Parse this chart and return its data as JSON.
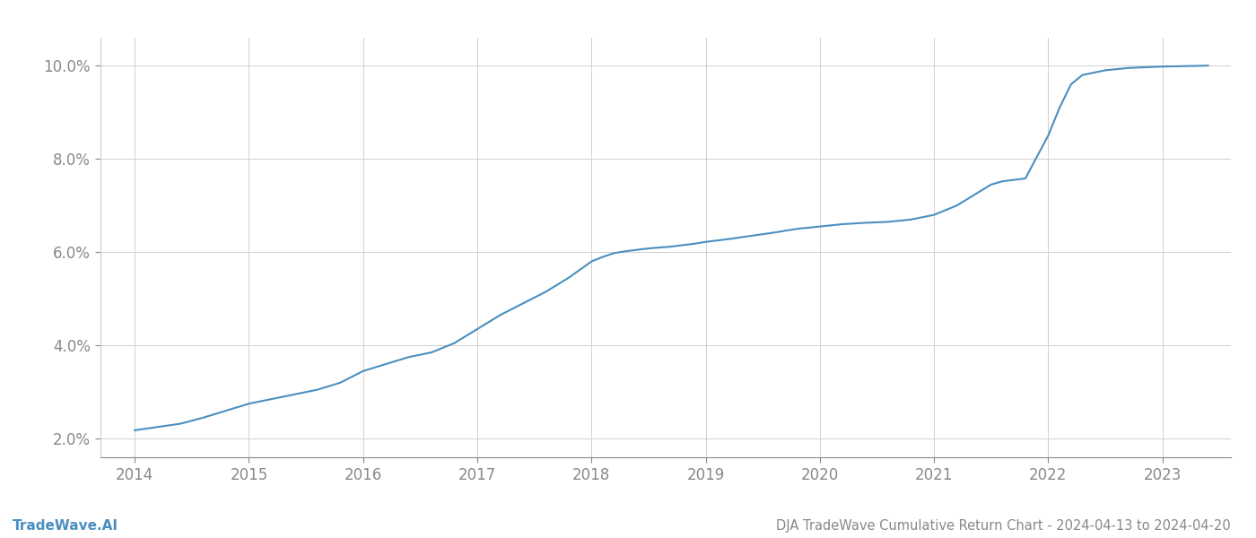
{
  "x_years": [
    2014.0,
    2014.2,
    2014.4,
    2014.6,
    2014.8,
    2015.0,
    2015.2,
    2015.4,
    2015.6,
    2015.8,
    2016.0,
    2016.2,
    2016.4,
    2016.6,
    2016.8,
    2017.0,
    2017.2,
    2017.4,
    2017.6,
    2017.8,
    2018.0,
    2018.1,
    2018.2,
    2018.3,
    2018.4,
    2018.5,
    2018.6,
    2018.7,
    2018.8,
    2018.9,
    2019.0,
    2019.2,
    2019.4,
    2019.6,
    2019.8,
    2020.0,
    2020.2,
    2020.4,
    2020.6,
    2020.8,
    2021.0,
    2021.2,
    2021.4,
    2021.5,
    2021.6,
    2021.7,
    2021.8,
    2022.0,
    2022.1,
    2022.2,
    2022.3,
    2022.5,
    2022.7,
    2022.9,
    2023.0,
    2023.2,
    2023.4
  ],
  "y_values": [
    2.18,
    2.25,
    2.32,
    2.45,
    2.6,
    2.75,
    2.85,
    2.95,
    3.05,
    3.2,
    3.45,
    3.6,
    3.75,
    3.85,
    4.05,
    4.35,
    4.65,
    4.9,
    5.15,
    5.45,
    5.8,
    5.9,
    5.98,
    6.02,
    6.05,
    6.08,
    6.1,
    6.12,
    6.15,
    6.18,
    6.22,
    6.28,
    6.35,
    6.42,
    6.5,
    6.55,
    6.6,
    6.63,
    6.65,
    6.7,
    6.8,
    7.0,
    7.3,
    7.45,
    7.52,
    7.55,
    7.58,
    8.5,
    9.1,
    9.6,
    9.8,
    9.9,
    9.95,
    9.97,
    9.98,
    9.99,
    10.0
  ],
  "line_color": "#4a8fc0",
  "line_width": 1.5,
  "title": "DJA TradeWave Cumulative Return Chart - 2024-04-13 to 2024-04-20",
  "watermark": "TradeWave.AI",
  "xlim": [
    2013.7,
    2023.6
  ],
  "ylim": [
    1.6,
    10.6
  ],
  "ytick_values": [
    2.0,
    4.0,
    6.0,
    8.0,
    10.0
  ],
  "ytick_labels": [
    "2.0%",
    "4.0%",
    "6.0%",
    "8.0%",
    "10.0%"
  ],
  "xtick_values": [
    2014,
    2015,
    2016,
    2017,
    2018,
    2019,
    2020,
    2021,
    2022,
    2023
  ],
  "grid_color": "#d0d0d0",
  "bg_color": "#ffffff",
  "font_color": "#888888",
  "title_color": "#888888",
  "watermark_color": "#4a8fc0",
  "title_fontsize": 10.5,
  "tick_fontsize": 12,
  "watermark_fontsize": 11
}
